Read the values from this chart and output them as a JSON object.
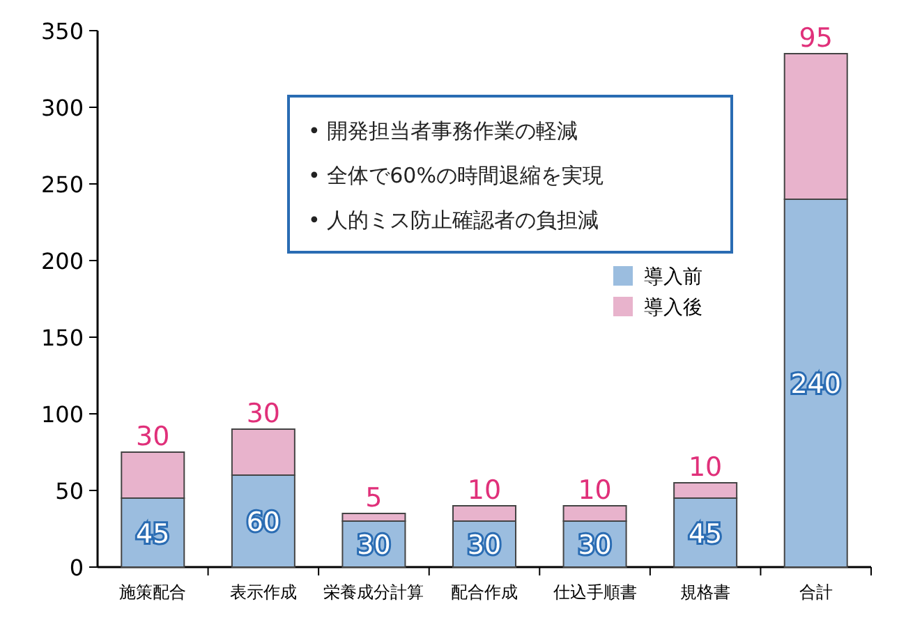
{
  "chart_data": {
    "type": "bar",
    "stacked": true,
    "categories": [
      "施策配合",
      "表示作成",
      "栄養成分計算",
      "配合作成",
      "仕込手順書",
      "規格書",
      "合計"
    ],
    "series": [
      {
        "name": "導入前",
        "color": "#9bbddf",
        "values": [
          45,
          60,
          30,
          30,
          30,
          45,
          240
        ]
      },
      {
        "name": "導入後",
        "color": "#e8b3cc",
        "values": [
          30,
          30,
          5,
          10,
          10,
          10,
          95
        ]
      }
    ],
    "ylim": [
      0,
      350
    ],
    "yticks": [
      0,
      50,
      100,
      150,
      200,
      250,
      300,
      350
    ],
    "data_labels": true,
    "legend": "top right",
    "grid": false,
    "annotations": [
      "• 開発担当者事務作業の軽減",
      "• 全体で60%の時間退縮を実現",
      "• 人的ミス防止確認者の負担減"
    ]
  }
}
